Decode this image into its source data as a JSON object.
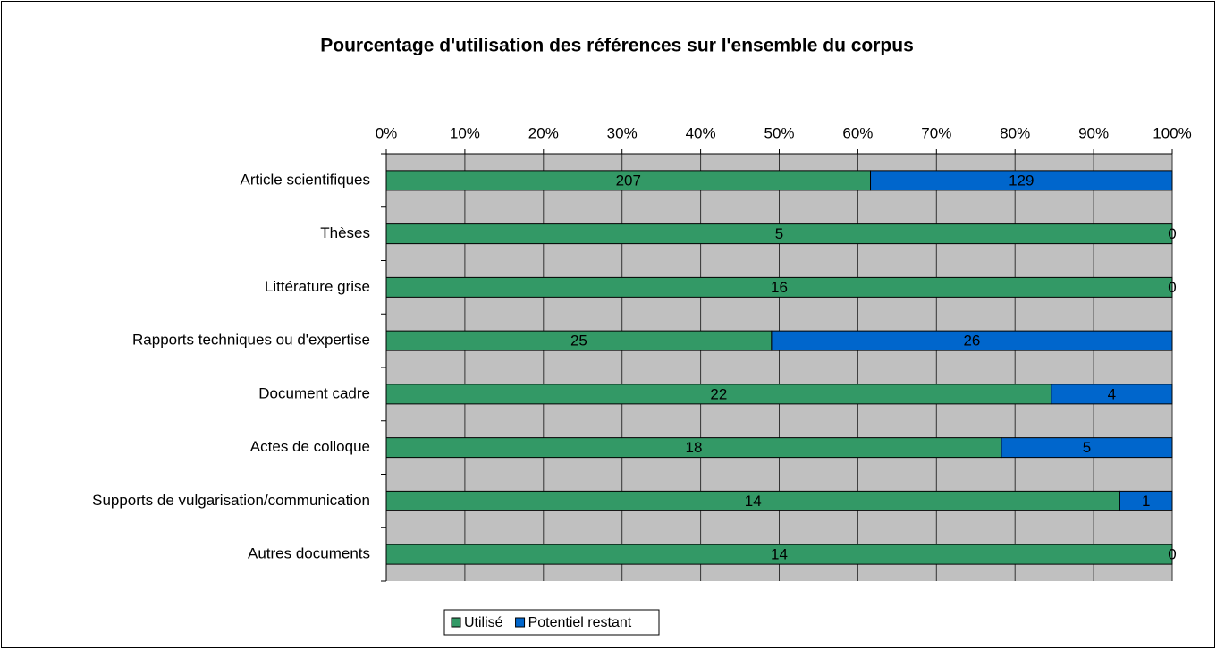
{
  "chart_data": {
    "type": "bar",
    "orientation": "horizontal",
    "stacking": "percent",
    "title": "Pourcentage d'utilisation des références sur l'ensemble du corpus",
    "categories": [
      "Article scientifiques",
      "Thèses",
      "Littérature grise",
      "Rapports techniques ou d'expertise",
      "Document cadre",
      "Actes de colloque",
      "Supports de vulgarisation/communication",
      "Autres documents"
    ],
    "series": [
      {
        "name": "Utilisé",
        "color": "#339966",
        "values": [
          207,
          5,
          16,
          25,
          22,
          18,
          14,
          14
        ]
      },
      {
        "name": "Potentiel restant",
        "color": "#0066cc",
        "values": [
          129,
          0,
          0,
          26,
          4,
          5,
          1,
          0
        ]
      }
    ],
    "xlim": [
      0,
      100
    ],
    "xticks": [
      {
        "value": 0,
        "label": "0%"
      },
      {
        "value": 10,
        "label": "10%"
      },
      {
        "value": 20,
        "label": "20%"
      },
      {
        "value": 30,
        "label": "30%"
      },
      {
        "value": 40,
        "label": "40%"
      },
      {
        "value": 50,
        "label": "50%"
      },
      {
        "value": 60,
        "label": "60%"
      },
      {
        "value": 70,
        "label": "70%"
      },
      {
        "value": 80,
        "label": "80%"
      },
      {
        "value": 90,
        "label": "90%"
      },
      {
        "value": 100,
        "label": "100%"
      }
    ],
    "grid": true,
    "legend": "bottom"
  }
}
